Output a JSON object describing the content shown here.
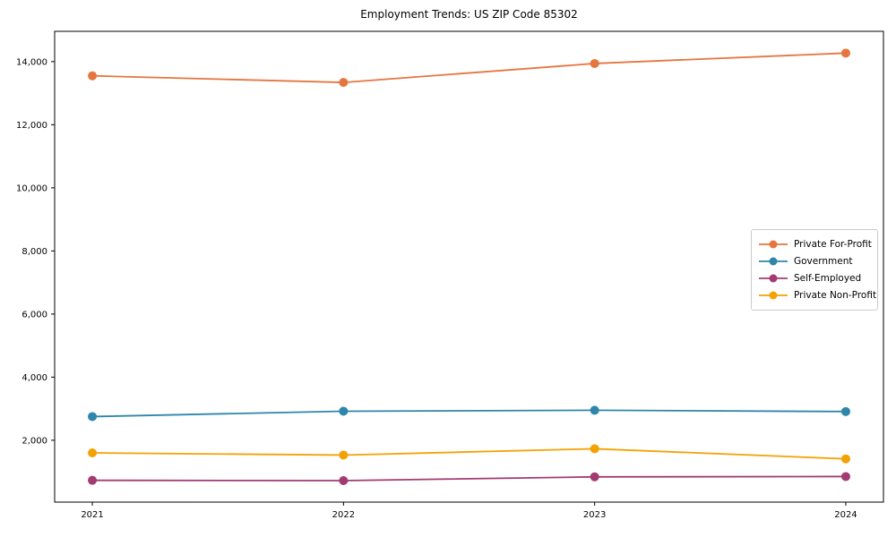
{
  "chart_data": {
    "type": "line",
    "title": "Employment Trends: US ZIP Code 85302",
    "x": [
      2021,
      2022,
      2023,
      2024
    ],
    "x_tick_labels": [
      "2021",
      "2022",
      "2023",
      "2024"
    ],
    "series": [
      {
        "name": "Private For-Profit",
        "color": "#E5763E",
        "values": [
          13550,
          13340,
          13940,
          14270
        ]
      },
      {
        "name": "Government",
        "color": "#2E86AB",
        "values": [
          2750,
          2920,
          2950,
          2910
        ]
      },
      {
        "name": "Self-Employed",
        "color": "#A23B72",
        "values": [
          730,
          720,
          840,
          850
        ]
      },
      {
        "name": "Private Non-Profit",
        "color": "#F3A205",
        "values": [
          1600,
          1530,
          1730,
          1410
        ]
      }
    ],
    "xlim": [
      2020.85,
      2024.15
    ],
    "ylim": [
      40,
      14960
    ],
    "yticks": [
      2000,
      4000,
      6000,
      8000,
      10000,
      12000,
      14000
    ],
    "ytick_labels": [
      "2,000",
      "4,000",
      "6,000",
      "8,000",
      "10,000",
      "12,000",
      "14,000"
    ],
    "grid": false,
    "legend_position": "center right",
    "marker": "circle",
    "background_color": "#ffffff",
    "spine_color": "#000000",
    "tick_label_color": "#000000"
  }
}
